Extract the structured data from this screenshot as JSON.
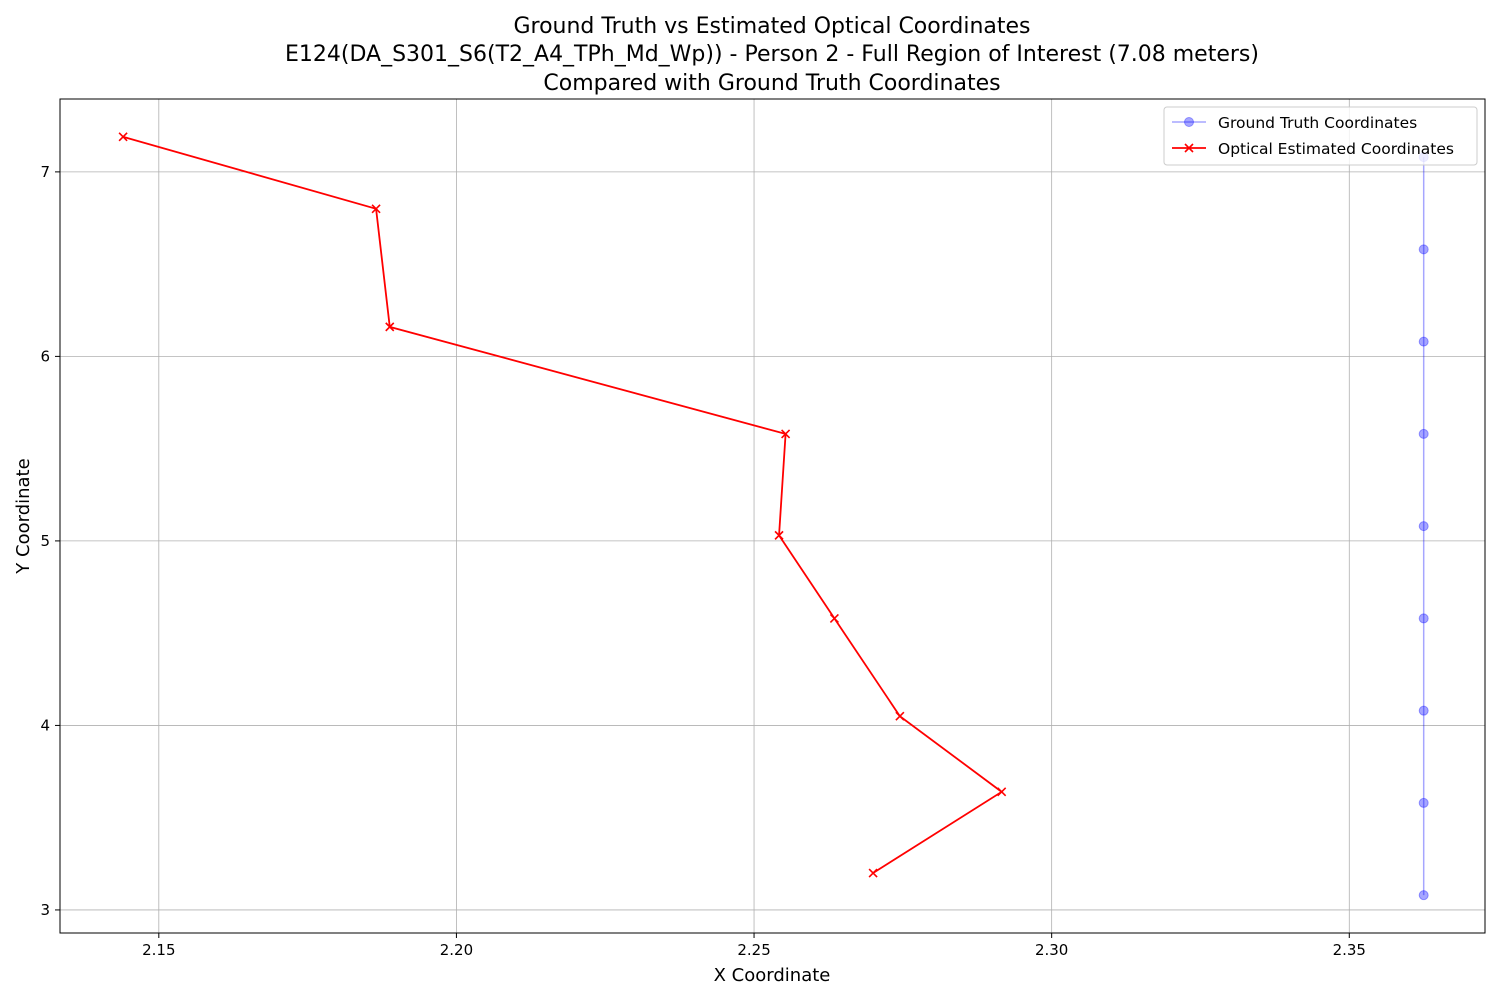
{
  "chart_data": {
    "type": "line",
    "title": [
      "Ground Truth vs Estimated Optical Coordinates",
      "E124(DA_S301_S6(T2_A4_TPh_Md_Wp)) - Person 2 - Full Region of Interest (7.08 meters)",
      "Compared with Ground Truth Coordinates"
    ],
    "xlabel": "X Coordinate",
    "ylabel": "Y Coordinate",
    "xlim": [
      2.1334,
      2.3728
    ],
    "ylim": [
      2.875,
      7.395
    ],
    "xticks": [
      2.15,
      2.2,
      2.25,
      2.3,
      2.35
    ],
    "xtick_labels": [
      "2.15",
      "2.20",
      "2.25",
      "2.30",
      "2.35"
    ],
    "yticks": [
      3,
      4,
      5,
      6,
      7
    ],
    "ytick_labels": [
      "3",
      "4",
      "5",
      "6",
      "7"
    ],
    "grid": true,
    "legend_position": "top-right",
    "series": [
      {
        "name": "Ground Truth Coordinates",
        "color": "#0000ff",
        "marker": "circle",
        "alpha": 0.35,
        "x": [
          2.3625,
          2.3625,
          2.3625,
          2.3625,
          2.3625,
          2.3625,
          2.3625,
          2.3625,
          2.3625
        ],
        "y": [
          7.08,
          6.58,
          6.08,
          5.58,
          5.08,
          4.58,
          4.08,
          3.58,
          3.08
        ]
      },
      {
        "name": "Optical Estimated Coordinates",
        "color": "#ff0000",
        "marker": "x",
        "alpha": 1,
        "x": [
          2.144,
          2.1865,
          2.1888,
          2.2553,
          2.2542,
          2.2635,
          2.2745,
          2.2916,
          2.27
        ],
        "y": [
          7.19,
          6.8,
          6.16,
          5.58,
          5.03,
          4.58,
          4.05,
          3.64,
          3.2
        ]
      }
    ]
  }
}
